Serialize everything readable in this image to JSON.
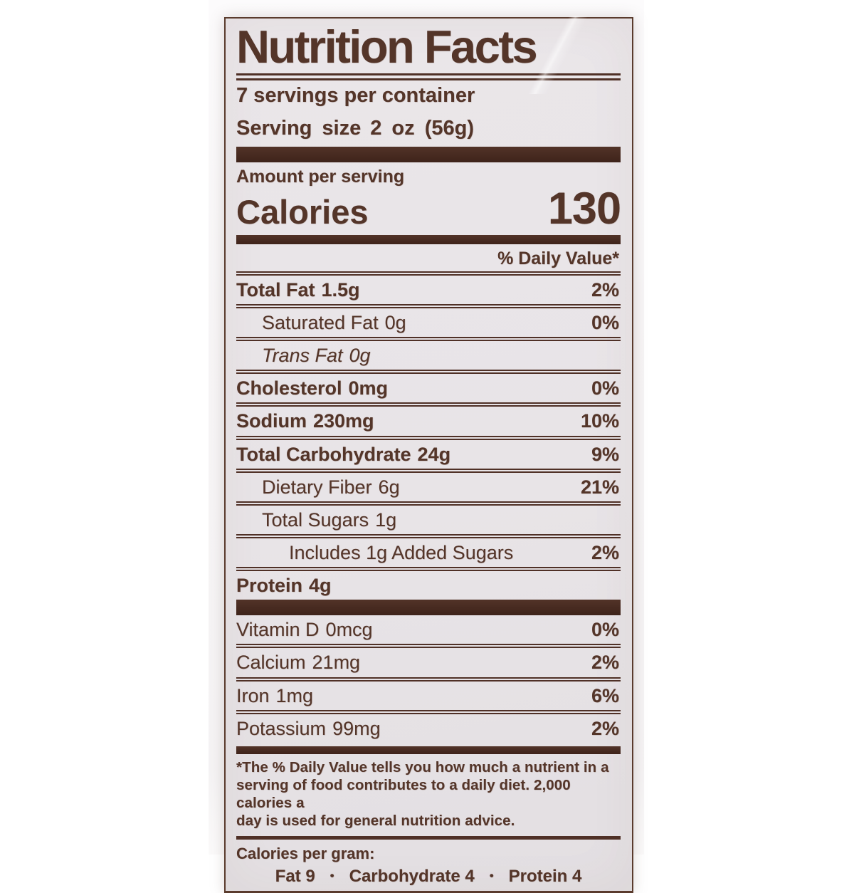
{
  "label": {
    "title": "Nutrition Facts",
    "servings_per_container": "7 servings per container",
    "serving_size_label": "Serving size",
    "serving_size_value": "2 oz (56g)",
    "amount_per_serving": "Amount per serving",
    "calories_label": "Calories",
    "calories_value": "130",
    "daily_value_header": "% Daily Value*",
    "rows": [
      {
        "name": "Total Fat",
        "amount": "1.5g",
        "dv": "2%"
      },
      {
        "name": "Saturated Fat",
        "amount": "0g",
        "dv": "0%"
      },
      {
        "name": "Trans Fat",
        "amount": "0g",
        "dv": ""
      },
      {
        "name": "Cholesterol",
        "amount": "0mg",
        "dv": "0%"
      },
      {
        "name": "Sodium",
        "amount": "230mg",
        "dv": "10%"
      },
      {
        "name": "Total Carbohydrate",
        "amount": "24g",
        "dv": "9%"
      },
      {
        "name": "Dietary Fiber",
        "amount": "6g",
        "dv": "21%"
      },
      {
        "name": "Total Sugars",
        "amount": "1g",
        "dv": ""
      },
      {
        "name": "Includes 1g Added Sugars",
        "amount": "",
        "dv": "2%"
      },
      {
        "name": "Protein",
        "amount": "4g",
        "dv": ""
      }
    ],
    "vitamins": [
      {
        "name": "Vitamin D",
        "amount": "0mcg",
        "dv": "0%"
      },
      {
        "name": "Calcium",
        "amount": "21mg",
        "dv": "2%"
      },
      {
        "name": "Iron",
        "amount": "1mg",
        "dv": "6%"
      },
      {
        "name": "Potassium",
        "amount": "99mg",
        "dv": "2%"
      }
    ],
    "footnote_lines": [
      "*The % Daily Value tells you how much a nutrient in a",
      "serving of food contributes to a daily diet. 2,000 calories a",
      "day is used for general nutrition advice."
    ],
    "calories_per_gram": {
      "label": "Calories per gram:",
      "items": [
        "Fat 9",
        "Carbohydrate 4",
        "Protein 4"
      ],
      "separator": "•"
    },
    "colors": {
      "ink": "#543529",
      "panel_bg": "#e8e4e7",
      "bar": "#472a1e"
    }
  }
}
